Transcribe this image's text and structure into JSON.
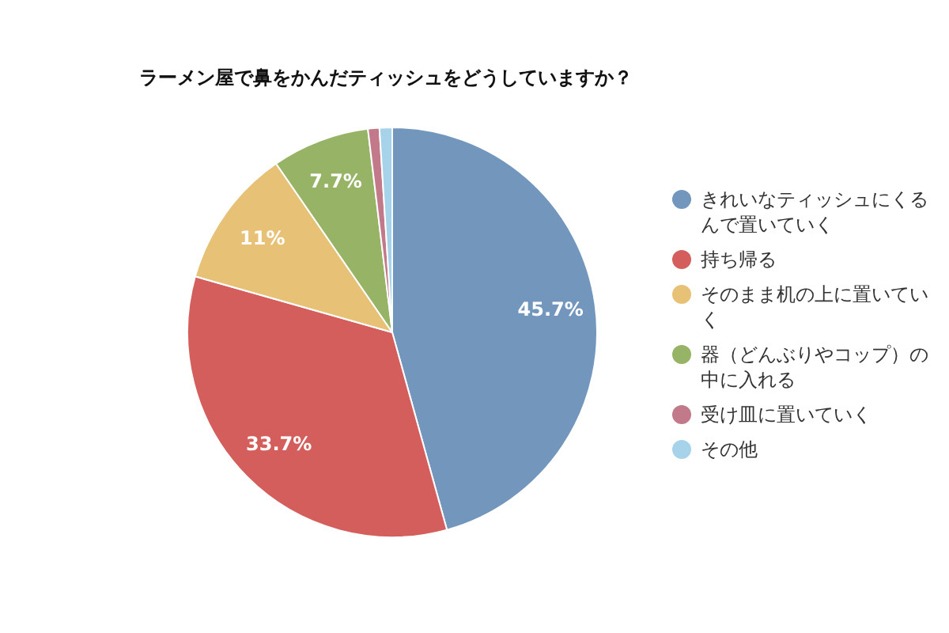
{
  "chart_data": {
    "type": "pie",
    "title": "ラーメン屋で鼻をかんだティッシュをどうしていますか？",
    "categories": [
      "きれいなティッシュにくるんで置いていく",
      "持ち帰る",
      "そのまま机の上に置いていく",
      "器（どんぶりやコップ）の中に入れる",
      "受け皿に置いていく",
      "その他"
    ],
    "values": [
      45.7,
      33.7,
      11,
      7.7,
      0.9,
      1.0
    ],
    "colors": [
      "#7396bd",
      "#d45e5c",
      "#e7c175",
      "#97b365",
      "#c27a8a",
      "#a7d3ea"
    ],
    "value_labels": [
      "45.7%",
      "33.7%",
      "11%",
      "7.7%",
      null,
      null
    ],
    "legend": "right"
  }
}
